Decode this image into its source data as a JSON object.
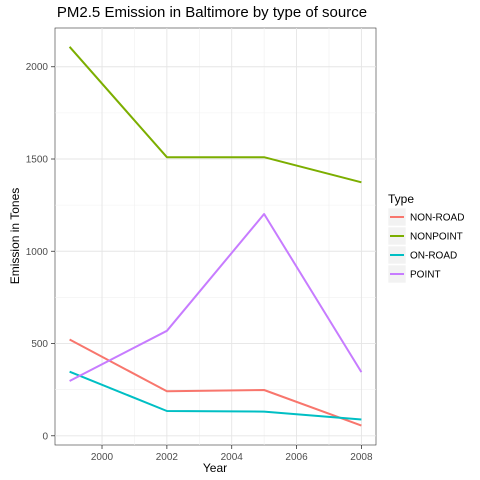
{
  "chart_data": {
    "type": "line",
    "title": "PM2.5 Emission in Baltimore by type of source",
    "xlabel": "Year",
    "ylabel": "Emission in Tones",
    "xlim": [
      1998.55,
      2008.45
    ],
    "ylim": [
      -50,
      2210
    ],
    "x_ticks": [
      2000,
      2002,
      2004,
      2006,
      2008
    ],
    "y_ticks": [
      0,
      500,
      1000,
      1500,
      2000
    ],
    "grid": true,
    "legend": {
      "title": "Type",
      "position": "right"
    },
    "x": [
      1999,
      2002,
      2005,
      2008
    ],
    "series": [
      {
        "name": "NON-ROAD",
        "color": "#F8766D",
        "values": [
          522,
          241,
          248,
          55
        ]
      },
      {
        "name": "NONPOINT",
        "color": "#7CAE00",
        "values": [
          2108,
          1510,
          1510,
          1374
        ]
      },
      {
        "name": "ON-ROAD",
        "color": "#00BFC4",
        "values": [
          347,
          134,
          131,
          88
        ]
      },
      {
        "name": "POINT",
        "color": "#C77CFF",
        "values": [
          297,
          569,
          1202,
          345
        ]
      }
    ]
  }
}
